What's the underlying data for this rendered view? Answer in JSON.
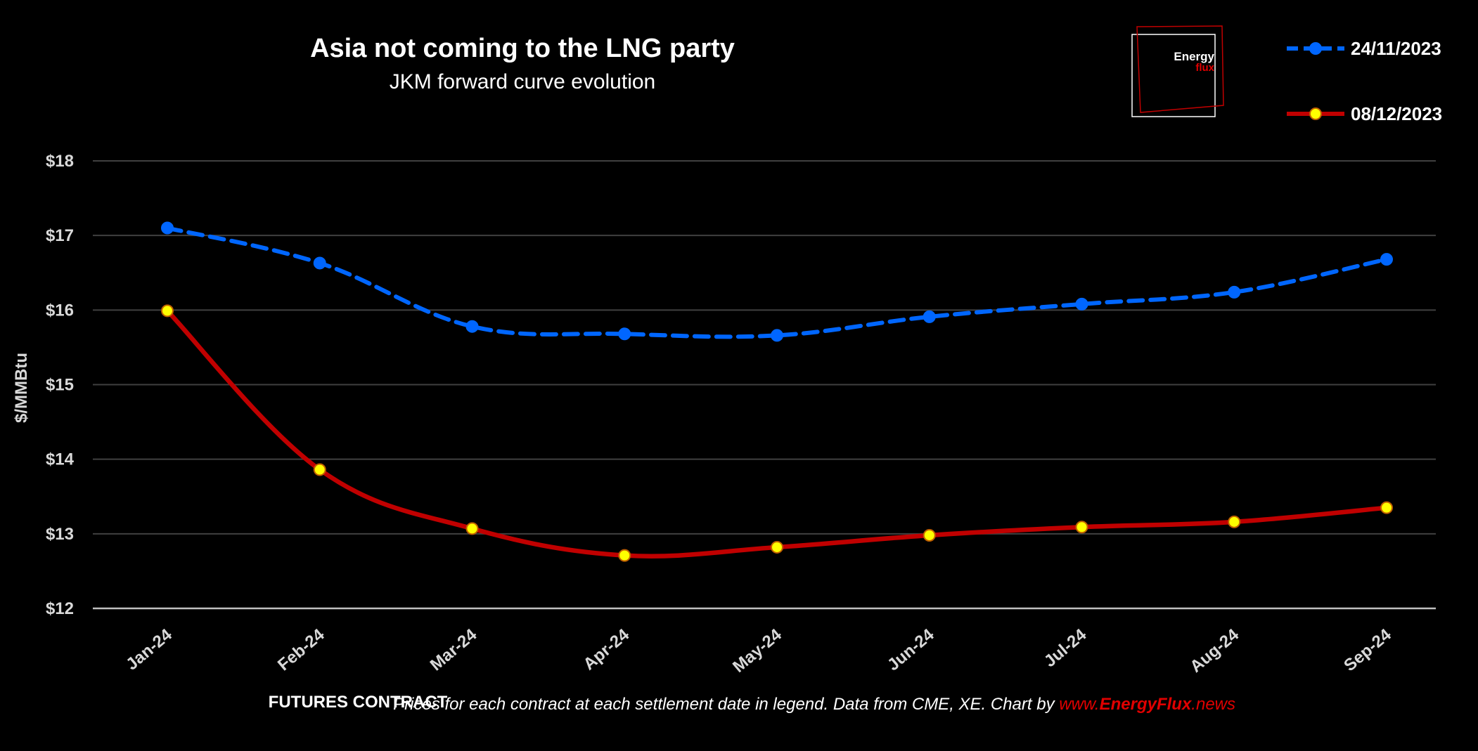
{
  "chart_data": {
    "type": "line",
    "title": "Asia not coming to the LNG party",
    "subtitle": "JKM forward curve evolution",
    "xlabel": "FUTURES CONTRACT",
    "ylabel": "$/MMBtu",
    "categories": [
      "Jan-24",
      "Feb-24",
      "Mar-24",
      "Apr-24",
      "May-24",
      "Jun-24",
      "Jul-24",
      "Aug-24",
      "Sep-24"
    ],
    "ylim": [
      12,
      18
    ],
    "yticks": [
      "$12",
      "$13",
      "$14",
      "$15",
      "$16",
      "$17",
      "$18"
    ],
    "grid": "horizontal",
    "legend_position": "top-right",
    "series": [
      {
        "name": "24/11/2023",
        "color": "#0066ff",
        "style": "dashed",
        "marker_color": "#0066ff",
        "values": [
          17.1,
          16.63,
          15.78,
          15.68,
          15.66,
          15.91,
          16.08,
          16.24,
          16.68
        ]
      },
      {
        "name": "08/12/2023",
        "color": "#c00000",
        "style": "solid",
        "marker_color": "#ffff00",
        "values": [
          15.99,
          13.86,
          13.07,
          12.71,
          12.82,
          12.98,
          13.09,
          13.16,
          13.35
        ]
      }
    ]
  },
  "logo": {
    "word1": "Energy",
    "word2": "flux"
  },
  "footnote": {
    "text": "Prices for each contract at each settlement date in legend. Data from CME, XE. Chart by ",
    "link_prefix": "www.",
    "link_brand": "EnergyFlux",
    "link_suffix": ".news"
  }
}
